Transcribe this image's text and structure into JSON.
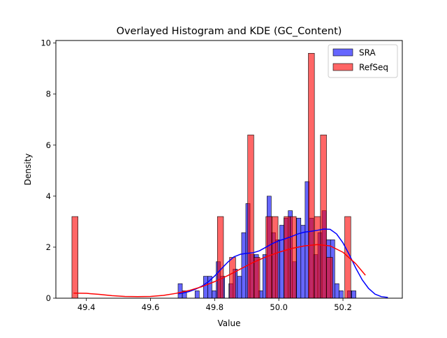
{
  "chart_data": {
    "type": "histogram",
    "title": "Overlayed Histogram and KDE (GC_Content)",
    "xlabel": "Value",
    "ylabel": "Density",
    "xlim": [
      49.305,
      50.385
    ],
    "ylim": [
      0,
      10.1
    ],
    "xticks": [
      49.4,
      49.6,
      49.8,
      50.0,
      50.2
    ],
    "xtick_labels": [
      "49.4",
      "49.6",
      "49.8",
      "50.0",
      "50.2"
    ],
    "yticks": [
      0,
      2,
      4,
      6,
      8,
      10
    ],
    "ytick_labels": [
      "0",
      "2",
      "4",
      "6",
      "8",
      "10"
    ],
    "grid": false,
    "legend": {
      "placement": "top-right",
      "entries": [
        "SRA",
        "RefSeq"
      ]
    },
    "series": [
      {
        "name": "SRA",
        "color": "#0000ff",
        "bin_start": 49.686,
        "bin_width": 0.0132,
        "densities": [
          0.57,
          0.29,
          0,
          0,
          0.29,
          0,
          0.86,
          0.86,
          0.29,
          1.43,
          0.86,
          0,
          0.57,
          1.14,
          0.86,
          2.57,
          3.71,
          1.71,
          1.71,
          0.29,
          1.71,
          4.0,
          2.57,
          2.29,
          2.86,
          3.14,
          3.43,
          1.43,
          3.14,
          2.86,
          4.57,
          3.14,
          1.71,
          2.57,
          3.43,
          2.29,
          2.29,
          0.57,
          0.29,
          0,
          0.29,
          0.29
        ],
        "kde_x": [
          49.686,
          49.7,
          49.72,
          49.74,
          49.76,
          49.78,
          49.8,
          49.82,
          49.84,
          49.86,
          49.88,
          49.9,
          49.92,
          49.94,
          49.96,
          49.98,
          50.0,
          50.02,
          50.04,
          50.06,
          50.08,
          50.1,
          50.12,
          50.14,
          50.16,
          50.18,
          50.2,
          50.22,
          50.24,
          50.26,
          50.28,
          50.3,
          50.32,
          50.34
        ],
        "kde_y": [
          0.17,
          0.2,
          0.26,
          0.35,
          0.47,
          0.64,
          0.87,
          1.14,
          1.4,
          1.62,
          1.72,
          1.76,
          1.78,
          1.86,
          2.0,
          2.14,
          2.25,
          2.33,
          2.42,
          2.52,
          2.59,
          2.62,
          2.66,
          2.71,
          2.7,
          2.52,
          2.17,
          1.7,
          1.18,
          0.72,
          0.38,
          0.16,
          0.06,
          0.03
        ]
      },
      {
        "name": "RefSeq",
        "color": "#ff0000",
        "bin_start": 49.355,
        "bin_width": 0.0189,
        "densities": [
          3.2,
          0,
          0,
          0,
          0,
          0,
          0,
          0,
          0,
          0,
          0,
          0,
          0,
          0,
          0,
          0,
          0,
          0,
          0,
          0,
          0,
          0,
          0,
          0,
          3.2,
          0,
          1.6,
          0,
          0,
          6.4,
          1.6,
          0,
          3.2,
          3.2,
          0,
          3.2,
          3.2,
          0,
          0,
          9.6,
          3.2,
          6.4,
          1.6,
          0,
          0,
          3.2
        ],
        "kde_x": [
          49.36,
          49.4,
          49.44,
          49.48,
          49.52,
          49.56,
          49.6,
          49.64,
          49.68,
          49.72,
          49.76,
          49.8,
          49.84,
          49.88,
          49.92,
          49.96,
          50.0,
          50.04,
          50.08,
          50.12,
          50.16,
          50.2,
          50.24,
          50.27
        ],
        "kde_y": [
          0.2,
          0.19,
          0.15,
          0.1,
          0.07,
          0.06,
          0.07,
          0.11,
          0.19,
          0.3,
          0.45,
          0.65,
          0.88,
          1.14,
          1.4,
          1.62,
          1.8,
          1.95,
          2.05,
          2.1,
          2.05,
          1.8,
          1.35,
          0.9
        ]
      }
    ]
  }
}
